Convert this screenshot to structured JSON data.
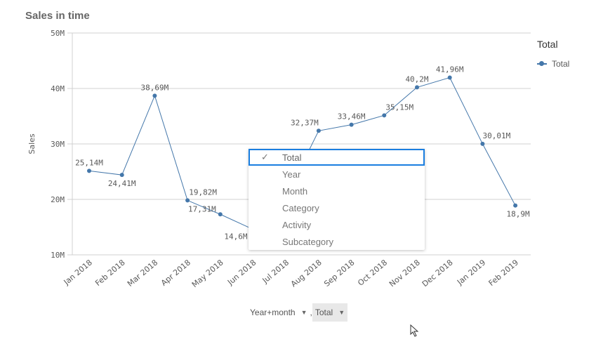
{
  "title": "Sales in time",
  "legend": {
    "title": "Total",
    "items": [
      "Total"
    ]
  },
  "colors": {
    "series": "#4477aa",
    "grid": "#d0d0d0",
    "focus": "#1a7ee0"
  },
  "dropdown": {
    "items": [
      "Total",
      "Year",
      "Month",
      "Category",
      "Activity",
      "Subcategory"
    ],
    "selected": "Total",
    "check_icon": "✓"
  },
  "pickers": {
    "dimension": "Year+month",
    "measure": "Total",
    "separator": ",",
    "arrow": "▼"
  },
  "chart_data": {
    "type": "line",
    "ylabel": "Sales",
    "xlabel": "",
    "ylim": [
      10,
      50
    ],
    "yticks": [
      "10M",
      "20M",
      "30M",
      "40M",
      "50M"
    ],
    "yunit": "M",
    "grid": true,
    "legend_placement": "top-right",
    "categories": [
      "Jan 2018",
      "Feb 2018",
      "Mar 2018",
      "Apr 2018",
      "May 2018",
      "Jun 2018",
      "Jul 2018",
      "Aug 2018",
      "Sep 2018",
      "Oct 2018",
      "Nov 2018",
      "Dec 2018",
      "Jan 2019",
      "Feb 2019"
    ],
    "series": [
      {
        "name": "Total",
        "values": [
          25.14,
          24.41,
          38.69,
          19.82,
          17.31,
          14.6,
          20.4,
          32.37,
          33.46,
          35.15,
          40.2,
          41.96,
          30.01,
          18.9
        ]
      }
    ]
  }
}
